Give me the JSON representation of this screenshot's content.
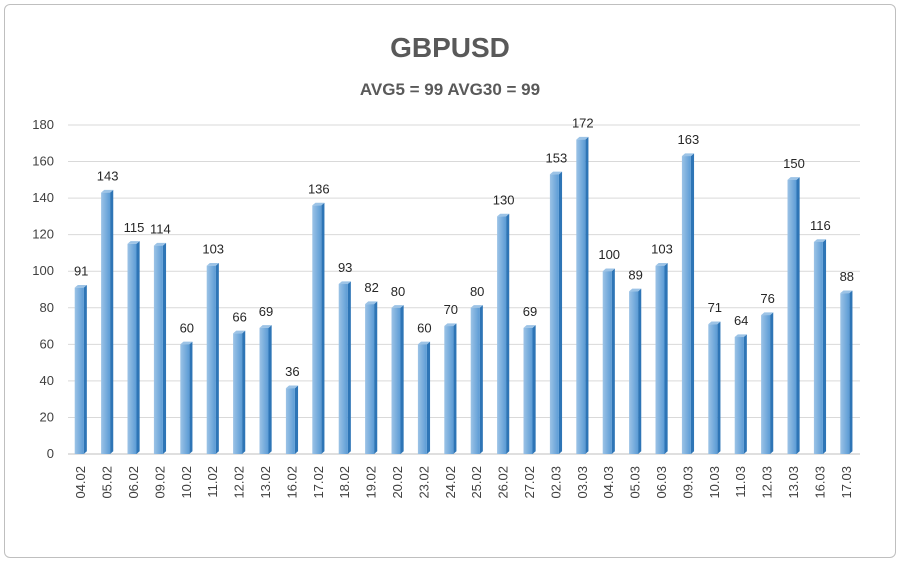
{
  "chart_data": {
    "type": "bar",
    "title": "GBPUSD",
    "subtitle": "AVG5 = 99 AVG30 = 99",
    "xlabel": "",
    "ylabel": "",
    "ylim": [
      0,
      180
    ],
    "yticks": [
      0,
      20,
      40,
      60,
      80,
      100,
      120,
      140,
      160,
      180
    ],
    "grid": true,
    "legend": "none",
    "categories": [
      "04.02",
      "05.02",
      "06.02",
      "09.02",
      "10.02",
      "11.02",
      "12.02",
      "13.02",
      "16.02",
      "17.02",
      "18.02",
      "19.02",
      "20.02",
      "23.02",
      "24.02",
      "25.02",
      "26.02",
      "27.02",
      "02.03",
      "03.03",
      "04.03",
      "05.03",
      "06.03",
      "09.03",
      "10.03",
      "11.03",
      "12.03",
      "13.03",
      "16.03",
      "17.03"
    ],
    "values": [
      91,
      143,
      115,
      114,
      60,
      103,
      66,
      69,
      36,
      136,
      93,
      82,
      80,
      60,
      70,
      80,
      130,
      69,
      153,
      172,
      100,
      89,
      103,
      163,
      71,
      64,
      76,
      150,
      116,
      88
    ],
    "colors": {
      "bar_front": "#5b9bd5",
      "bar_light": "#9cc3e6",
      "bar_side": "#2e75b6",
      "grid": "#d9d9d9",
      "axis": "#bfbfbf"
    }
  }
}
